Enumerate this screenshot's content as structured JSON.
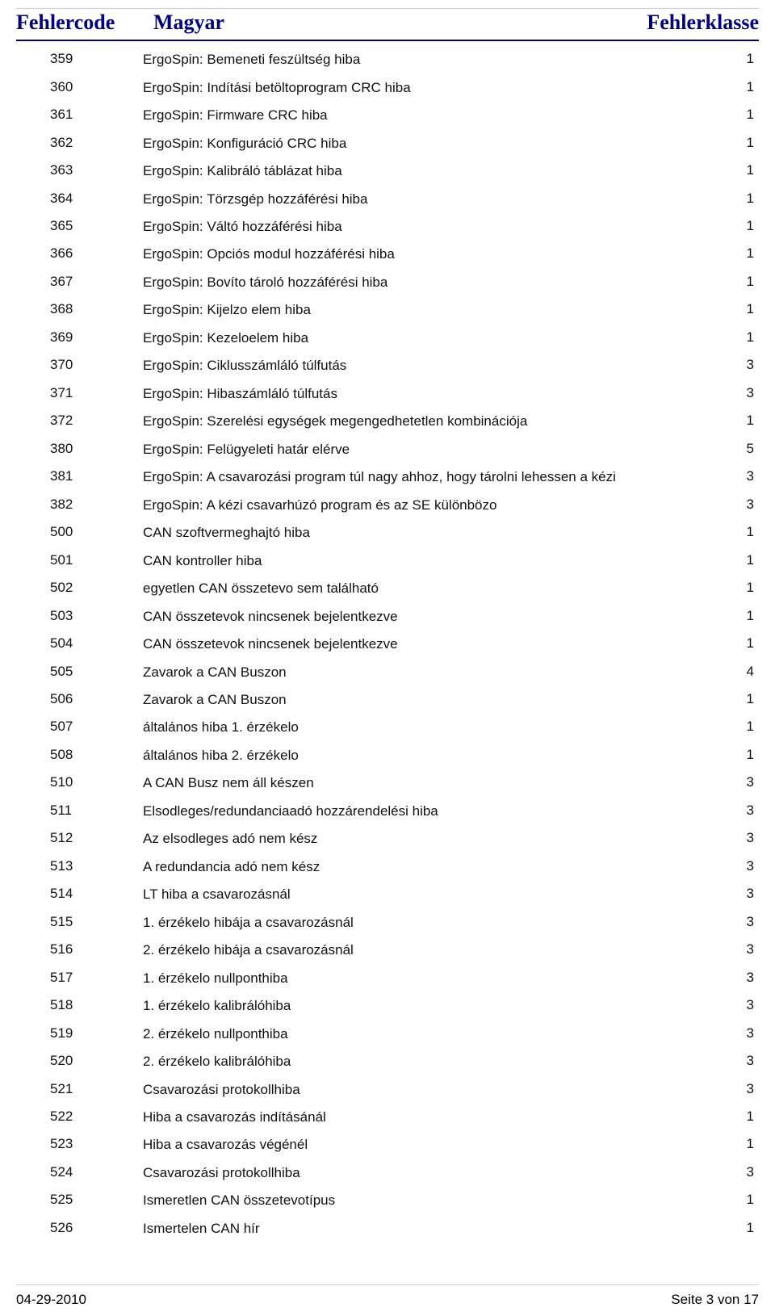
{
  "header": {
    "code": "Fehlercode",
    "desc": "Magyar",
    "class": "Fehlerklasse"
  },
  "rows": [
    {
      "code": "359",
      "desc": "ErgoSpin: Bemeneti feszültség hiba",
      "class": "1"
    },
    {
      "code": "360",
      "desc": "ErgoSpin: Indítási betöltoprogram CRC hiba",
      "class": "1"
    },
    {
      "code": "361",
      "desc": "ErgoSpin: Firmware CRC hiba",
      "class": "1"
    },
    {
      "code": "362",
      "desc": "ErgoSpin: Konfiguráció CRC hiba",
      "class": "1"
    },
    {
      "code": "363",
      "desc": "ErgoSpin: Kalibráló táblázat hiba",
      "class": "1"
    },
    {
      "code": "364",
      "desc": "ErgoSpin: Törzsgép hozzáférési hiba",
      "class": "1"
    },
    {
      "code": "365",
      "desc": "ErgoSpin: Váltó hozzáférési hiba",
      "class": "1"
    },
    {
      "code": "366",
      "desc": "ErgoSpin: Opciós modul hozzáférési hiba",
      "class": "1"
    },
    {
      "code": "367",
      "desc": "ErgoSpin: Bovíto tároló hozzáférési hiba",
      "class": "1"
    },
    {
      "code": "368",
      "desc": "ErgoSpin: Kijelzo elem hiba",
      "class": "1"
    },
    {
      "code": "369",
      "desc": "ErgoSpin: Kezeloelem hiba",
      "class": "1"
    },
    {
      "code": "370",
      "desc": "ErgoSpin: Ciklusszámláló túlfutás",
      "class": "3"
    },
    {
      "code": "371",
      "desc": "ErgoSpin: Hibaszámláló túlfutás",
      "class": "3"
    },
    {
      "code": "372",
      "desc": "ErgoSpin: Szerelési egységek megengedhetetlen kombinációja",
      "class": "1"
    },
    {
      "code": "380",
      "desc": "ErgoSpin: Felügyeleti határ elérve",
      "class": "5"
    },
    {
      "code": "381",
      "desc": "ErgoSpin: A csavarozási program túl nagy ahhoz, hogy tárolni lehessen a kézi",
      "class": "3"
    },
    {
      "code": "382",
      "desc": "ErgoSpin: A kézi csavarhúzó program és az SE különbözo",
      "class": "3"
    },
    {
      "code": "500",
      "desc": "CAN szoftvermeghajtó hiba",
      "class": "1"
    },
    {
      "code": "501",
      "desc": "CAN kontroller hiba",
      "class": "1"
    },
    {
      "code": "502",
      "desc": "egyetlen CAN összetevo sem található",
      "class": "1"
    },
    {
      "code": "503",
      "desc": "CAN összetevok nincsenek bejelentkezve",
      "class": "1"
    },
    {
      "code": "504",
      "desc": "CAN összetevok nincsenek bejelentkezve",
      "class": "1"
    },
    {
      "code": "505",
      "desc": "Zavarok a CAN Buszon",
      "class": "4"
    },
    {
      "code": "506",
      "desc": "Zavarok a CAN Buszon",
      "class": "1"
    },
    {
      "code": "507",
      "desc": "általános hiba 1. érzékelo",
      "class": "1"
    },
    {
      "code": "508",
      "desc": "általános hiba 2. érzékelo",
      "class": "1"
    },
    {
      "code": "510",
      "desc": "A CAN Busz nem áll készen",
      "class": "3"
    },
    {
      "code": "511",
      "desc": "Elsodleges/redundanciaadó hozzárendelési hiba",
      "class": "3"
    },
    {
      "code": "512",
      "desc": "Az elsodleges adó nem kész",
      "class": "3"
    },
    {
      "code": "513",
      "desc": "A redundancia adó nem kész",
      "class": "3"
    },
    {
      "code": "514",
      "desc": "LT hiba a csavarozásnál",
      "class": "3"
    },
    {
      "code": "515",
      "desc": "1. érzékelo hibája a csavarozásnál",
      "class": "3"
    },
    {
      "code": "516",
      "desc": "2. érzékelo hibája a csavarozásnál",
      "class": "3"
    },
    {
      "code": "517",
      "desc": "1. érzékelo nullponthiba",
      "class": "3"
    },
    {
      "code": "518",
      "desc": "1. érzékelo kalibrálóhiba",
      "class": "3"
    },
    {
      "code": "519",
      "desc": "2. érzékelo nullponthiba",
      "class": "3"
    },
    {
      "code": "520",
      "desc": "2. érzékelo kalibrálóhiba",
      "class": "3"
    },
    {
      "code": "521",
      "desc": "Csavarozási protokollhiba",
      "class": "3"
    },
    {
      "code": "522",
      "desc": "Hiba a csavarozás indításánál",
      "class": "1"
    },
    {
      "code": "523",
      "desc": "Hiba a csavarozás végénél",
      "class": "1"
    },
    {
      "code": "524",
      "desc": "Csavarozási protokollhiba",
      "class": "3"
    },
    {
      "code": "525",
      "desc": "Ismeretlen CAN összetevotípus",
      "class": "1"
    },
    {
      "code": "526",
      "desc": "Ismertelen CAN hír",
      "class": "1"
    }
  ],
  "footer": {
    "date": "04-29-2010",
    "page": "Seite 3 von 17"
  }
}
